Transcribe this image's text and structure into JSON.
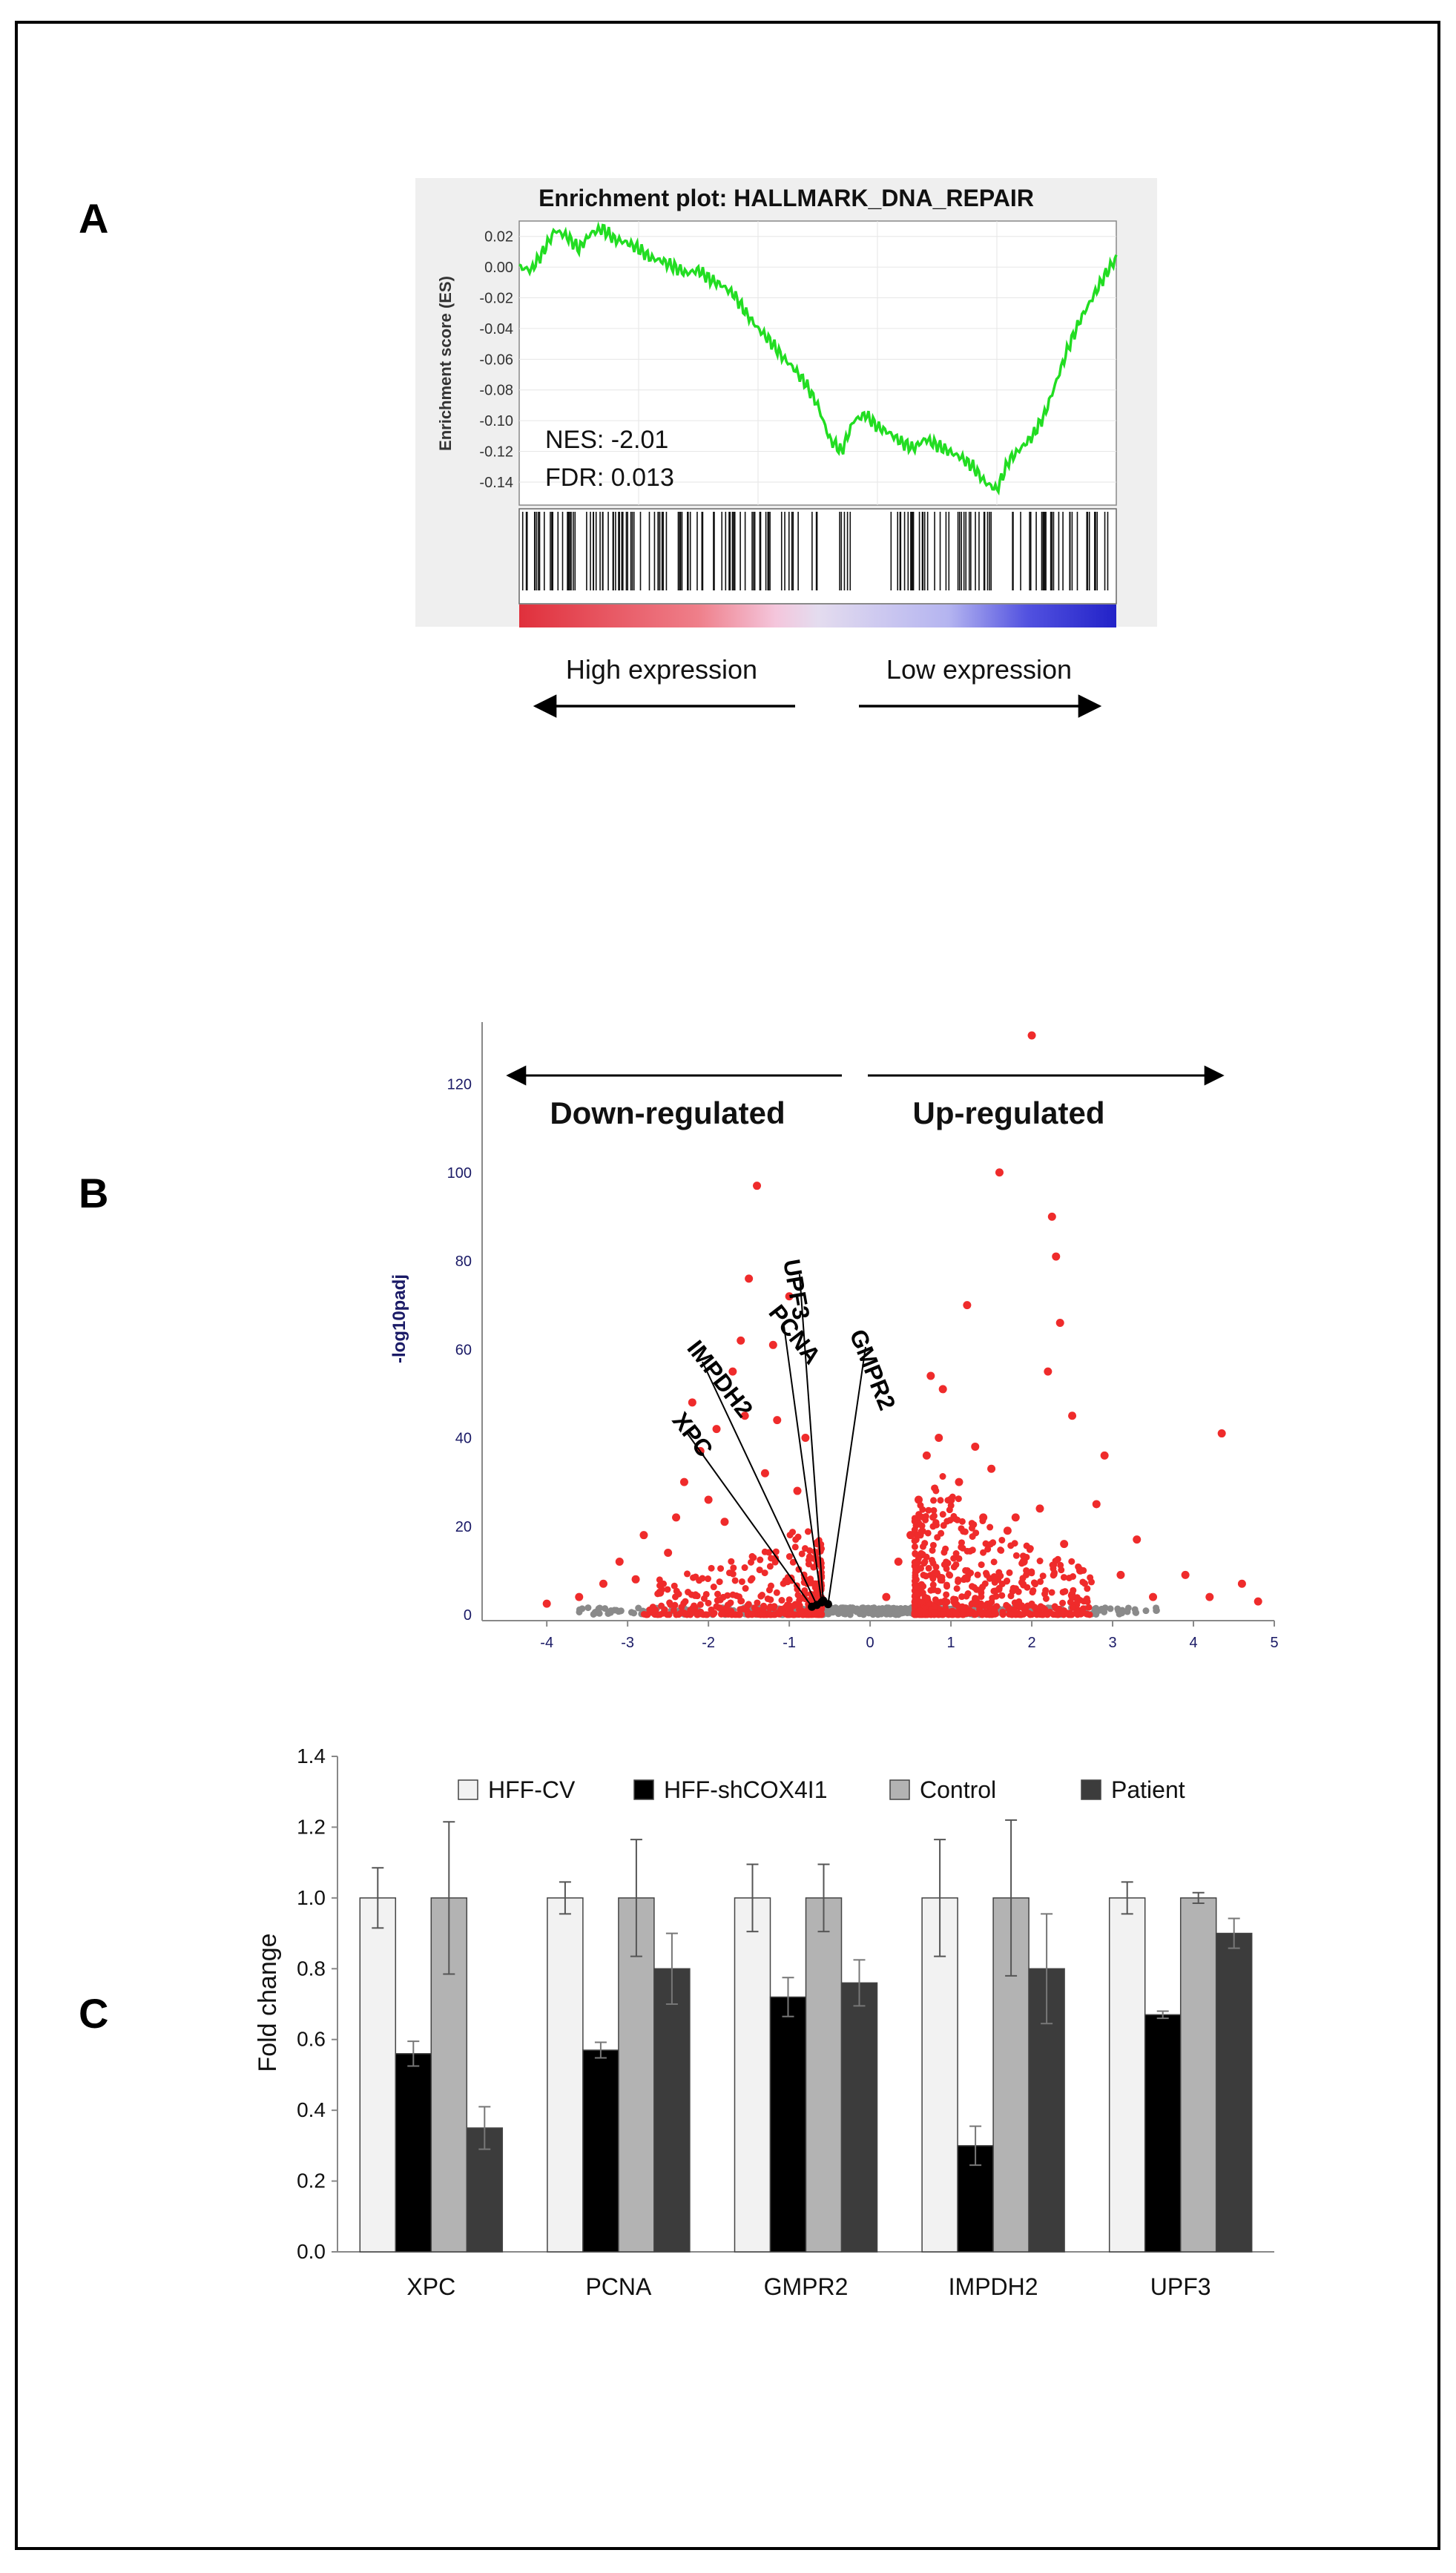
{
  "panels": {
    "a": "A",
    "b": "B",
    "c": "C"
  },
  "colors": {
    "es_line": "#22dd22",
    "volcano_sig": "#ef2b2b",
    "volcano_ns": "#8a8a8a",
    "hff_cv": "#f2f2f2",
    "hff_sh": "#000000",
    "control": "#b3b3b3",
    "patient": "#3c3c3c"
  },
  "chart_data": [
    {
      "type": "line",
      "title": "Enrichment plot: HALLMARK_DNA_REPAIR",
      "ylabel": "Enrichment score (ES)",
      "ylim": [
        -0.155,
        0.03
      ],
      "yticks": [
        "0.02",
        "0.00",
        "-0.02",
        "-0.04",
        "-0.06",
        "-0.08",
        "-0.10",
        "-0.12",
        "-0.14"
      ],
      "x": [
        0,
        0.02,
        0.04,
        0.06,
        0.08,
        0.1,
        0.12,
        0.14,
        0.16,
        0.18,
        0.2,
        0.22,
        0.24,
        0.26,
        0.28,
        0.3,
        0.32,
        0.34,
        0.36,
        0.38,
        0.4,
        0.42,
        0.44,
        0.46,
        0.48,
        0.5,
        0.52,
        0.54,
        0.56,
        0.58,
        0.6,
        0.62,
        0.64,
        0.66,
        0.68,
        0.7,
        0.72,
        0.74,
        0.76,
        0.78,
        0.8,
        0.82,
        0.84,
        0.86,
        0.88,
        0.9,
        0.92,
        0.94,
        0.96,
        0.98,
        1.0
      ],
      "values": [
        0.0,
        -0.002,
        0.01,
        0.024,
        0.02,
        0.012,
        0.022,
        0.025,
        0.018,
        0.016,
        0.012,
        0.006,
        0.004,
        0.0,
        -0.004,
        -0.002,
        -0.008,
        -0.012,
        -0.018,
        -0.03,
        -0.04,
        -0.048,
        -0.058,
        -0.066,
        -0.076,
        -0.09,
        -0.112,
        -0.12,
        -0.1,
        -0.096,
        -0.104,
        -0.108,
        -0.114,
        -0.118,
        -0.112,
        -0.116,
        -0.12,
        -0.124,
        -0.13,
        -0.14,
        -0.145,
        -0.126,
        -0.118,
        -0.11,
        -0.096,
        -0.074,
        -0.052,
        -0.034,
        -0.02,
        -0.006,
        0.006
      ],
      "annotations": [
        "NES: -2.01",
        "FDR: 0.013"
      ],
      "direction_labels": [
        "High expression",
        "Low expression"
      ]
    },
    {
      "type": "scatter",
      "xlim": [
        -4.8,
        5
      ],
      "ylim": [
        0,
        132
      ],
      "xticks": [
        "-4",
        "-3",
        "-2",
        "-1",
        "0",
        "1",
        "2",
        "3",
        "4",
        "5"
      ],
      "yticks": [
        "0",
        "20",
        "40",
        "60",
        "80",
        "100",
        "120"
      ],
      "ylabel": "-log10padj",
      "direction_labels": [
        "Down-regulated",
        "Up-regulated"
      ],
      "highlight_points": [
        [
          -4.0,
          2.5
        ],
        [
          -3.6,
          4
        ],
        [
          -3.3,
          7
        ],
        [
          -3.1,
          12
        ],
        [
          -2.9,
          8
        ],
        [
          -2.8,
          18
        ],
        [
          -2.6,
          5
        ],
        [
          -2.5,
          14
        ],
        [
          -2.4,
          22
        ],
        [
          -2.3,
          30
        ],
        [
          -2.2,
          48
        ],
        [
          -2.1,
          37
        ],
        [
          -2.0,
          26
        ],
        [
          -1.9,
          42
        ],
        [
          -1.8,
          21
        ],
        [
          -1.7,
          55
        ],
        [
          -1.6,
          62
        ],
        [
          -1.55,
          45
        ],
        [
          -1.5,
          76
        ],
        [
          -1.4,
          97
        ],
        [
          -1.3,
          32
        ],
        [
          -1.2,
          61
        ],
        [
          -1.15,
          44
        ],
        [
          -1.0,
          72
        ],
        [
          -0.9,
          28
        ],
        [
          -0.8,
          40
        ],
        [
          0.2,
          4
        ],
        [
          0.35,
          12
        ],
        [
          0.5,
          18
        ],
        [
          0.6,
          26
        ],
        [
          0.7,
          36
        ],
        [
          0.75,
          54
        ],
        [
          0.85,
          40
        ],
        [
          0.9,
          51
        ],
        [
          1.0,
          26
        ],
        [
          1.1,
          30
        ],
        [
          1.2,
          70
        ],
        [
          1.3,
          38
        ],
        [
          1.4,
          22
        ],
        [
          1.5,
          33
        ],
        [
          1.6,
          100
        ],
        [
          1.7,
          19
        ],
        [
          1.8,
          22
        ],
        [
          1.9,
          12
        ],
        [
          2.0,
          131
        ],
        [
          2.1,
          24
        ],
        [
          2.2,
          55
        ],
        [
          2.25,
          90
        ],
        [
          2.3,
          81
        ],
        [
          2.35,
          66
        ],
        [
          2.4,
          16
        ],
        [
          2.5,
          45
        ],
        [
          2.6,
          10
        ],
        [
          2.8,
          25
        ],
        [
          2.9,
          36
        ],
        [
          3.1,
          9
        ],
        [
          3.3,
          17
        ],
        [
          3.5,
          4
        ],
        [
          3.9,
          9
        ],
        [
          4.2,
          4
        ],
        [
          4.35,
          41
        ],
        [
          4.6,
          7
        ],
        [
          4.8,
          3
        ]
      ],
      "labeled_genes": [
        {
          "name": "XPC",
          "x": -0.72,
          "y": 1.8
        },
        {
          "name": "IMPDH2",
          "x": -0.66,
          "y": 2.2
        },
        {
          "name": "PCNA",
          "x": -0.6,
          "y": 2.8
        },
        {
          "name": "UPF3",
          "x": -0.58,
          "y": 3.2
        },
        {
          "name": "GMPR2",
          "x": -0.52,
          "y": 2.4
        }
      ]
    },
    {
      "type": "bar",
      "ylabel": "Fold change",
      "ylim": [
        0,
        1.4
      ],
      "yticks": [
        "0.0",
        "0.2",
        "0.4",
        "0.6",
        "0.8",
        "1.0",
        "1.2",
        "1.4"
      ],
      "categories": [
        "XPC",
        "PCNA",
        "GMPR2",
        "IMPDH2",
        "UPF3"
      ],
      "series": [
        {
          "name": "HFF-CV",
          "values": [
            1.0,
            1.0,
            1.0,
            1.0,
            1.0
          ],
          "errors": [
            0.085,
            0.045,
            0.095,
            0.165,
            0.045
          ]
        },
        {
          "name": "HFF-shCOX4I1",
          "values": [
            0.56,
            0.57,
            0.72,
            0.3,
            0.67
          ],
          "errors": [
            0.035,
            0.022,
            0.055,
            0.055,
            0.01
          ]
        },
        {
          "name": "Control",
          "values": [
            1.0,
            1.0,
            1.0,
            1.0,
            1.0
          ],
          "errors": [
            0.215,
            0.165,
            0.095,
            0.22,
            0.015
          ]
        },
        {
          "name": "Patient",
          "values": [
            0.35,
            0.8,
            0.76,
            0.8,
            0.9
          ],
          "errors": [
            0.06,
            0.1,
            0.065,
            0.155,
            0.042
          ]
        }
      ]
    }
  ]
}
